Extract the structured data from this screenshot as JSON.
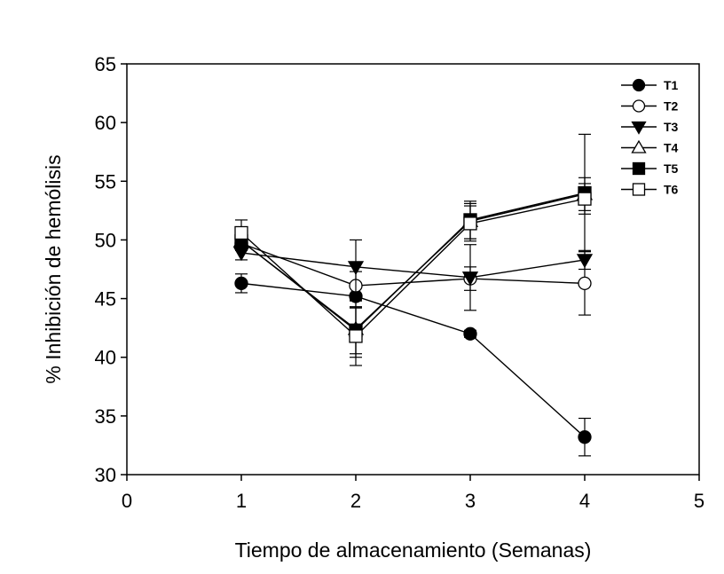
{
  "chart_data": {
    "type": "line",
    "title": "",
    "xlabel": "Tiempo de almacenamiento (Semanas)",
    "ylabel": "% Inhibición de hemólisis",
    "xlim": [
      0,
      5
    ],
    "ylim": [
      30,
      65
    ],
    "xticks": [
      "0",
      "1",
      "2",
      "3",
      "4",
      "5"
    ],
    "yticks": [
      "30",
      "35",
      "40",
      "45",
      "50",
      "55",
      "60",
      "65"
    ],
    "grid": false,
    "legend_position": "top-right",
    "x": [
      1,
      2,
      3,
      4
    ],
    "series": [
      {
        "name": "T1",
        "marker": "circle",
        "filled": true,
        "values": [
          46.3,
          45.2,
          42.0,
          33.2
        ],
        "errors": [
          0.8,
          1.0,
          0.3,
          1.6
        ]
      },
      {
        "name": "T2",
        "marker": "circle",
        "filled": false,
        "values": [
          49.7,
          46.1,
          46.7,
          46.3
        ],
        "errors": [
          0.6,
          1.2,
          1.0,
          2.7
        ]
      },
      {
        "name": "T3",
        "marker": "triangle-down",
        "filled": true,
        "values": [
          48.9,
          47.7,
          46.8,
          48.3
        ],
        "errors": [
          0.6,
          2.3,
          2.8,
          0.8
        ]
      },
      {
        "name": "T4",
        "marker": "triangle-up",
        "filled": false,
        "values": [
          49.9,
          42.4,
          51.6,
          53.9
        ],
        "errors": [
          0.5,
          2.4,
          1.5,
          1.4
        ]
      },
      {
        "name": "T5",
        "marker": "square",
        "filled": true,
        "values": [
          49.9,
          42.3,
          51.7,
          54.0
        ],
        "errors": [
          0.6,
          2.0,
          1.6,
          5.0
        ]
      },
      {
        "name": "T6",
        "marker": "square",
        "filled": false,
        "values": [
          50.6,
          41.8,
          51.4,
          53.5
        ],
        "errors": [
          1.1,
          2.5,
          1.5,
          1.3
        ]
      }
    ]
  }
}
